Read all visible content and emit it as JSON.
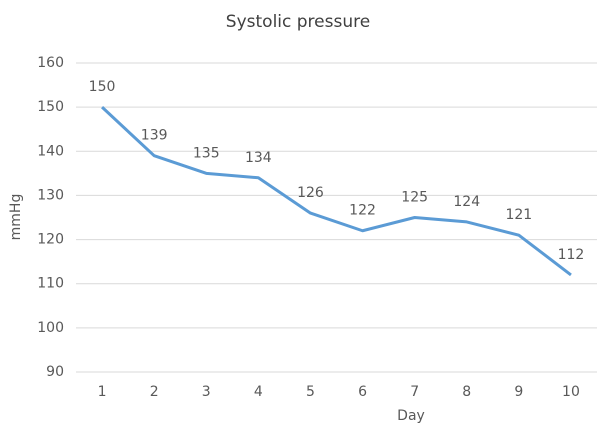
{
  "chart_data": {
    "type": "line",
    "title": "Systolic pressure",
    "x_label": "Day",
    "y_label": "mmHg",
    "categories": [
      "1",
      "2",
      "3",
      "4",
      "5",
      "6",
      "7",
      "8",
      "9",
      "10"
    ],
    "series": [
      {
        "name": "Systolic pressure",
        "color": "#5b9bd5",
        "values": [
          150,
          139,
          135,
          134,
          126,
          122,
          125,
          124,
          121,
          112
        ]
      }
    ],
    "ylim": [
      90,
      160
    ],
    "yticks": [
      90,
      100,
      110,
      120,
      130,
      140,
      150,
      160
    ],
    "grid": true
  }
}
